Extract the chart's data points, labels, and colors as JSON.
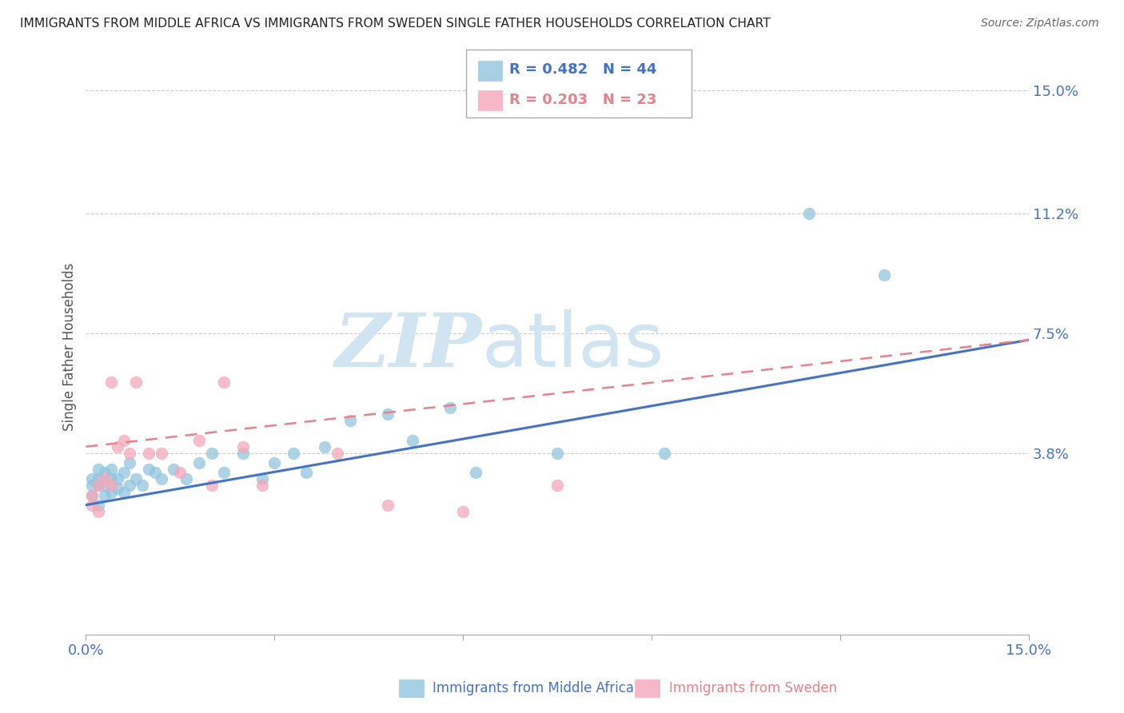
{
  "title": "IMMIGRANTS FROM MIDDLE AFRICA VS IMMIGRANTS FROM SWEDEN SINGLE FATHER HOUSEHOLDS CORRELATION CHART",
  "source": "Source: ZipAtlas.com",
  "ylabel": "Single Father Households",
  "yticks": [
    0.0,
    0.038,
    0.075,
    0.112,
    0.15
  ],
  "ytick_labels": [
    "",
    "3.8%",
    "7.5%",
    "11.2%",
    "15.0%"
  ],
  "xmin": 0.0,
  "xmax": 0.15,
  "ymin": -0.018,
  "ymax": 0.16,
  "blue_R": 0.482,
  "blue_N": 44,
  "pink_R": 0.203,
  "pink_N": 23,
  "blue_label": "Immigrants from Middle Africa",
  "pink_label": "Immigrants from Sweden",
  "blue_color": "#92c5de",
  "pink_color": "#f4a7b9",
  "blue_line_color": "#4472c4",
  "pink_line_color": "#e8828a",
  "watermark_zip": "ZIP",
  "watermark_atlas": "atlas",
  "watermark_color": "#d0e4f2",
  "blue_line_start_y": 0.022,
  "blue_line_end_y": 0.073,
  "pink_line_start_y": 0.04,
  "pink_line_end_y": 0.073,
  "blue_x": [
    0.001,
    0.001,
    0.001,
    0.002,
    0.002,
    0.002,
    0.002,
    0.003,
    0.003,
    0.003,
    0.004,
    0.004,
    0.004,
    0.005,
    0.005,
    0.006,
    0.006,
    0.007,
    0.007,
    0.008,
    0.009,
    0.01,
    0.011,
    0.012,
    0.014,
    0.016,
    0.018,
    0.02,
    0.022,
    0.025,
    0.028,
    0.03,
    0.033,
    0.035,
    0.038,
    0.042,
    0.048,
    0.052,
    0.058,
    0.062,
    0.075,
    0.092,
    0.115,
    0.127
  ],
  "blue_y": [
    0.025,
    0.028,
    0.03,
    0.022,
    0.028,
    0.03,
    0.033,
    0.025,
    0.028,
    0.032,
    0.026,
    0.03,
    0.033,
    0.027,
    0.03,
    0.026,
    0.032,
    0.028,
    0.035,
    0.03,
    0.028,
    0.033,
    0.032,
    0.03,
    0.033,
    0.03,
    0.035,
    0.038,
    0.032,
    0.038,
    0.03,
    0.035,
    0.038,
    0.032,
    0.04,
    0.048,
    0.05,
    0.042,
    0.052,
    0.032,
    0.038,
    0.038,
    0.112,
    0.093
  ],
  "pink_x": [
    0.001,
    0.001,
    0.002,
    0.002,
    0.003,
    0.004,
    0.004,
    0.005,
    0.006,
    0.007,
    0.008,
    0.01,
    0.012,
    0.015,
    0.018,
    0.02,
    0.022,
    0.025,
    0.028,
    0.04,
    0.048,
    0.06,
    0.075
  ],
  "pink_y": [
    0.022,
    0.025,
    0.02,
    0.028,
    0.03,
    0.028,
    0.06,
    0.04,
    0.042,
    0.038,
    0.06,
    0.038,
    0.038,
    0.032,
    0.042,
    0.028,
    0.06,
    0.04,
    0.028,
    0.038,
    0.022,
    0.02,
    0.028
  ]
}
